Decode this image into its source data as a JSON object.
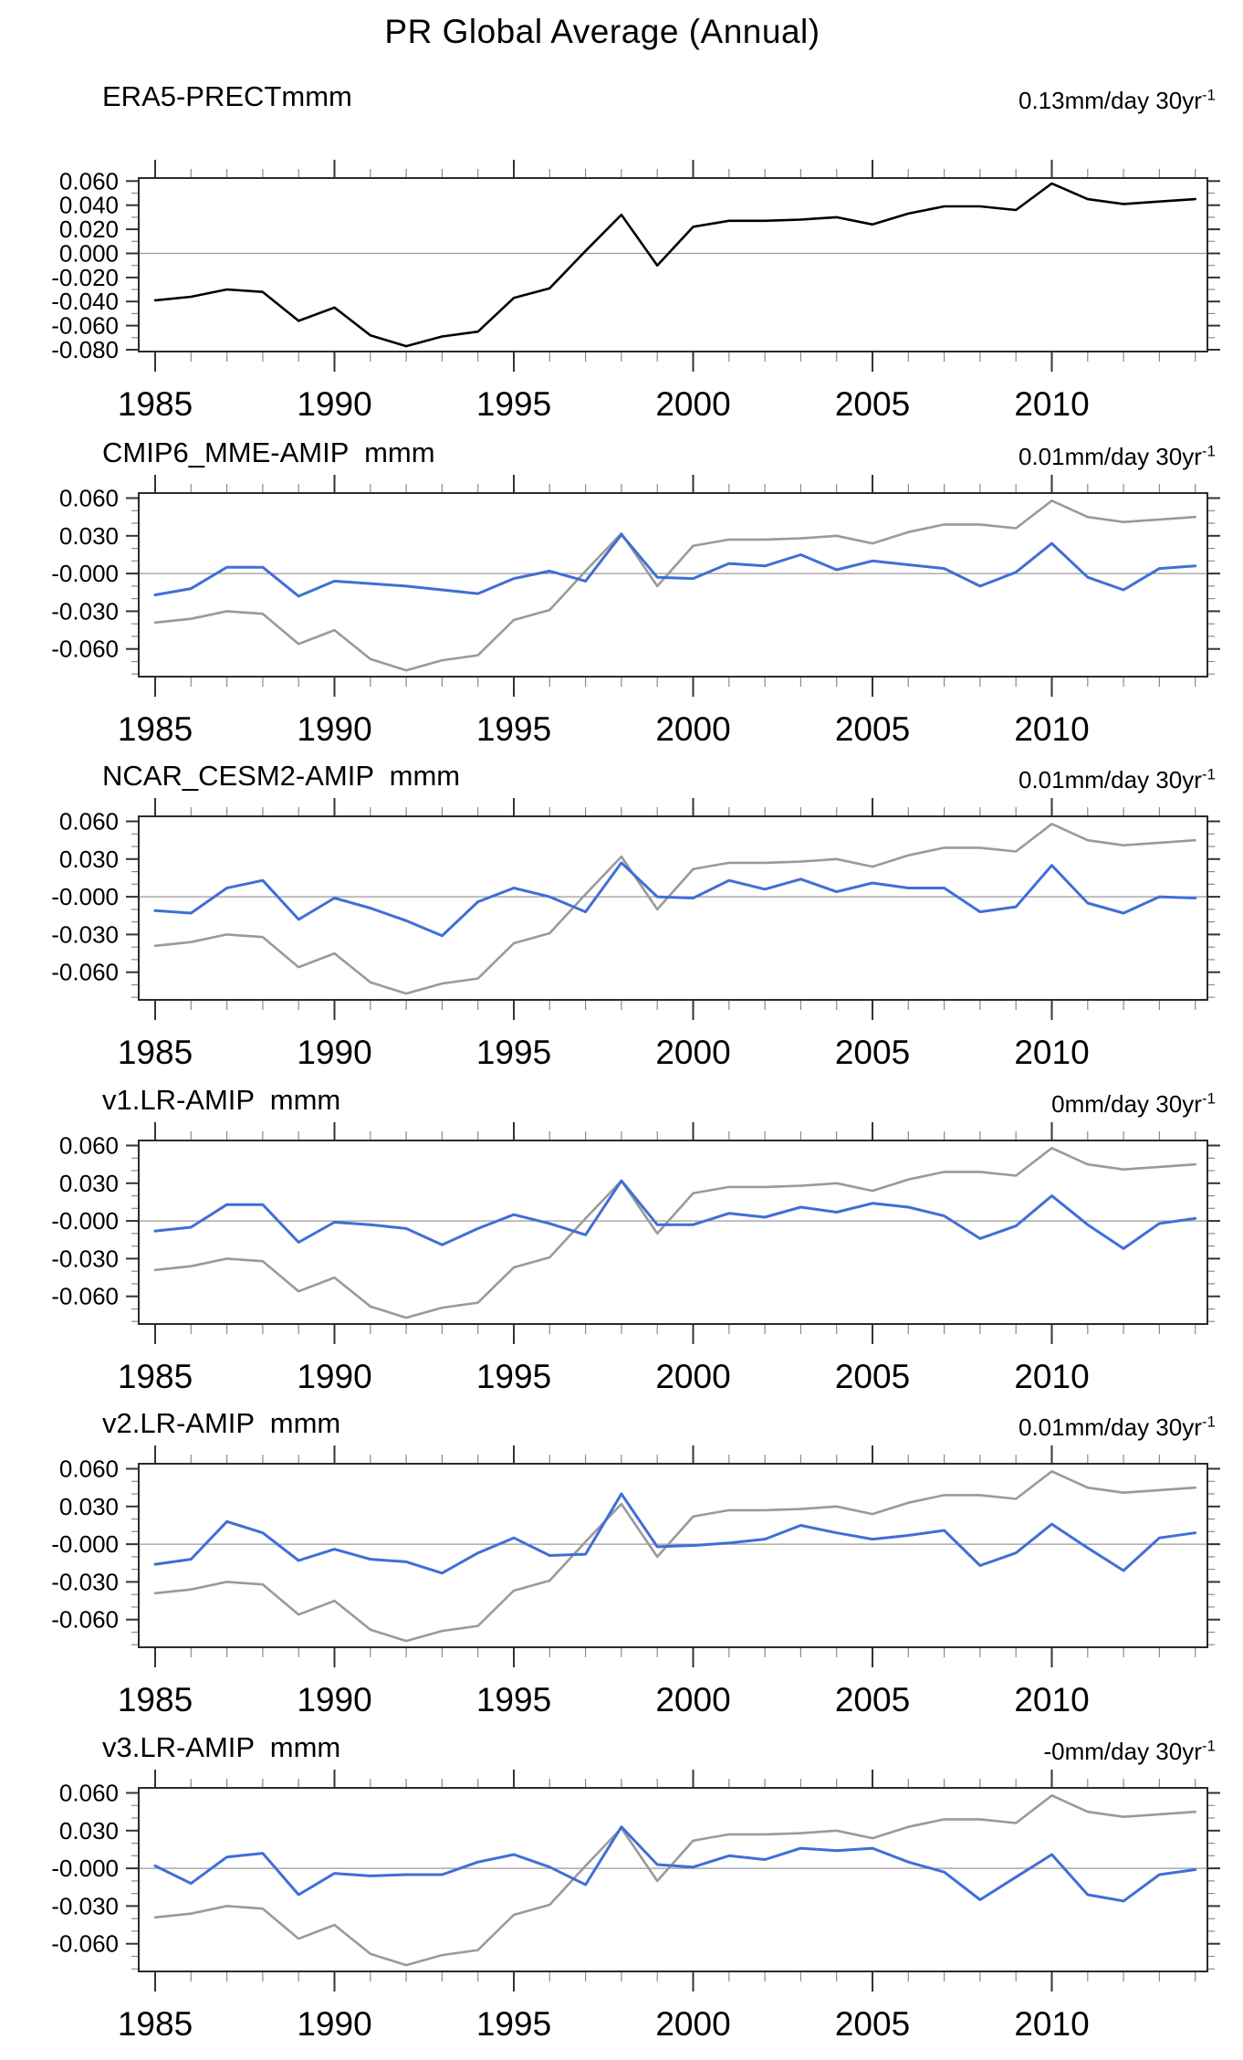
{
  "chart_data": {
    "type": "line",
    "title": "PR Global Average (Annual)",
    "x": [
      1985,
      1986,
      1987,
      1988,
      1989,
      1990,
      1991,
      1992,
      1993,
      1994,
      1995,
      1996,
      1997,
      1998,
      1999,
      2000,
      2001,
      2002,
      2003,
      2004,
      2005,
      2006,
      2007,
      2008,
      2009,
      2010,
      2011,
      2012,
      2013,
      2014
    ],
    "x_tick_labels": [
      "1985",
      "1990",
      "1995",
      "2000",
      "2005",
      "2010"
    ],
    "x_tick_years": [
      1985,
      1990,
      1995,
      2000,
      2005,
      2010
    ],
    "xlim": [
      1984.55,
      2014.35
    ],
    "grid": "off",
    "zero_line_color": "#9a9a9a",
    "reference": {
      "name": "ERA5 reference (gray)",
      "color": "#9a9a9a",
      "values": [
        -0.039,
        -0.036,
        -0.03,
        -0.032,
        -0.056,
        -0.045,
        -0.068,
        -0.077,
        -0.069,
        -0.065,
        -0.037,
        -0.029,
        0.002,
        0.032,
        -0.01,
        0.022,
        0.027,
        0.027,
        0.028,
        0.03,
        0.024,
        0.033,
        0.039,
        0.039,
        0.036,
        0.058,
        0.045,
        0.041,
        0.043,
        0.045
      ]
    },
    "panels": [
      {
        "title": "ERA5-PRECTmmm",
        "trend_label": "0.13mm/day 30yr",
        "trend_superscript": "-1",
        "color": "#000000",
        "show_reference": false,
        "ylim": [
          -0.0815,
          0.0625
        ],
        "y_tick_values": [
          0.06,
          0.04,
          0.02,
          0,
          -0.02,
          -0.04,
          -0.06,
          -0.08
        ],
        "y_tick_labels": [
          "0.060",
          "0.040",
          "0.020",
          "0.000",
          "-0.020",
          "-0.040",
          "-0.060",
          "-0.080"
        ],
        "values": [
          -0.039,
          -0.036,
          -0.03,
          -0.032,
          -0.056,
          -0.045,
          -0.068,
          -0.077,
          -0.069,
          -0.065,
          -0.037,
          -0.029,
          0.002,
          0.032,
          -0.01,
          0.022,
          0.027,
          0.027,
          0.028,
          0.03,
          0.024,
          0.033,
          0.039,
          0.039,
          0.036,
          0.058,
          0.045,
          0.041,
          0.043,
          0.045
        ]
      },
      {
        "title": "CMIP6_MME-AMIP  mmm",
        "trend_label": "0.01mm/day 30yr",
        "trend_superscript": "-1",
        "color": "#3f6fd6",
        "show_reference": true,
        "ylim": [
          -0.082,
          0.064
        ],
        "y_tick_values": [
          0.06,
          0.03,
          0,
          -0.03,
          -0.06
        ],
        "y_tick_labels": [
          "0.060",
          "0.030",
          "-0.000",
          "-0.030",
          "-0.060"
        ],
        "values": [
          -0.017,
          -0.012,
          0.005,
          0.005,
          -0.018,
          -0.006,
          -0.008,
          -0.01,
          -0.013,
          -0.016,
          -0.004,
          0.002,
          -0.006,
          0.031,
          -0.003,
          -0.004,
          0.008,
          0.006,
          0.015,
          0.003,
          0.01,
          0.007,
          0.004,
          -0.01,
          0.001,
          0.024,
          -0.003,
          -0.013,
          0.004,
          0.006
        ]
      },
      {
        "title": "NCAR_CESM2-AMIP  mmm",
        "trend_label": "0.01mm/day 30yr",
        "trend_superscript": "-1",
        "color": "#3f6fd6",
        "show_reference": true,
        "ylim": [
          -0.082,
          0.064
        ],
        "y_tick_values": [
          0.06,
          0.03,
          0,
          -0.03,
          -0.06
        ],
        "y_tick_labels": [
          "0.060",
          "0.030",
          "-0.000",
          "-0.030",
          "-0.060"
        ],
        "values": [
          -0.011,
          -0.013,
          0.007,
          0.013,
          -0.018,
          -0.001,
          -0.009,
          -0.019,
          -0.031,
          -0.004,
          0.007,
          0.0,
          -0.012,
          0.027,
          0.0,
          -0.001,
          0.013,
          0.006,
          0.014,
          0.004,
          0.011,
          0.007,
          0.007,
          -0.012,
          -0.008,
          0.025,
          -0.005,
          -0.013,
          0.0,
          -0.001
        ]
      },
      {
        "title": "v1.LR-AMIP  mmm",
        "trend_label": "0mm/day 30yr",
        "trend_superscript": "-1",
        "color": "#3f6fd6",
        "show_reference": true,
        "ylim": [
          -0.082,
          0.064
        ],
        "y_tick_values": [
          0.06,
          0.03,
          0,
          -0.03,
          -0.06
        ],
        "y_tick_labels": [
          "0.060",
          "0.030",
          "-0.000",
          "-0.030",
          "-0.060"
        ],
        "values": [
          -0.008,
          -0.005,
          0.013,
          0.013,
          -0.017,
          -0.001,
          -0.003,
          -0.006,
          -0.019,
          -0.006,
          0.005,
          -0.002,
          -0.011,
          0.032,
          -0.003,
          -0.003,
          0.006,
          0.003,
          0.011,
          0.007,
          0.014,
          0.011,
          0.004,
          -0.014,
          -0.004,
          0.02,
          -0.003,
          -0.022,
          -0.002,
          0.002
        ]
      },
      {
        "title": "v2.LR-AMIP  mmm",
        "trend_label": "0.01mm/day 30yr",
        "trend_superscript": "-1",
        "color": "#3f6fd6",
        "show_reference": true,
        "ylim": [
          -0.082,
          0.064
        ],
        "y_tick_values": [
          0.06,
          0.03,
          0,
          -0.03,
          -0.06
        ],
        "y_tick_labels": [
          "0.060",
          "0.030",
          "-0.000",
          "-0.030",
          "-0.060"
        ],
        "values": [
          -0.016,
          -0.012,
          0.018,
          0.009,
          -0.013,
          -0.004,
          -0.012,
          -0.014,
          -0.023,
          -0.007,
          0.005,
          -0.009,
          -0.008,
          0.04,
          -0.002,
          -0.001,
          0.001,
          0.004,
          0.015,
          0.009,
          0.004,
          0.007,
          0.011,
          -0.017,
          -0.007,
          0.016,
          -0.003,
          -0.021,
          0.005,
          0.009
        ]
      },
      {
        "title": "v3.LR-AMIP  mmm",
        "trend_label": "-0mm/day 30yr",
        "trend_superscript": "-1",
        "color": "#3f6fd6",
        "show_reference": true,
        "ylim": [
          -0.082,
          0.064
        ],
        "y_tick_values": [
          0.06,
          0.03,
          0,
          -0.03,
          -0.06
        ],
        "y_tick_labels": [
          "0.060",
          "0.030",
          "-0.000",
          "-0.030",
          "-0.060"
        ],
        "values": [
          0.002,
          -0.012,
          0.009,
          0.012,
          -0.021,
          -0.004,
          -0.006,
          -0.005,
          -0.005,
          0.005,
          0.011,
          0.001,
          -0.013,
          0.033,
          0.003,
          0.001,
          0.01,
          0.007,
          0.016,
          0.014,
          0.016,
          0.005,
          -0.003,
          -0.025,
          -0.007,
          0.011,
          -0.021,
          -0.026,
          -0.005,
          -0.001
        ]
      }
    ]
  }
}
